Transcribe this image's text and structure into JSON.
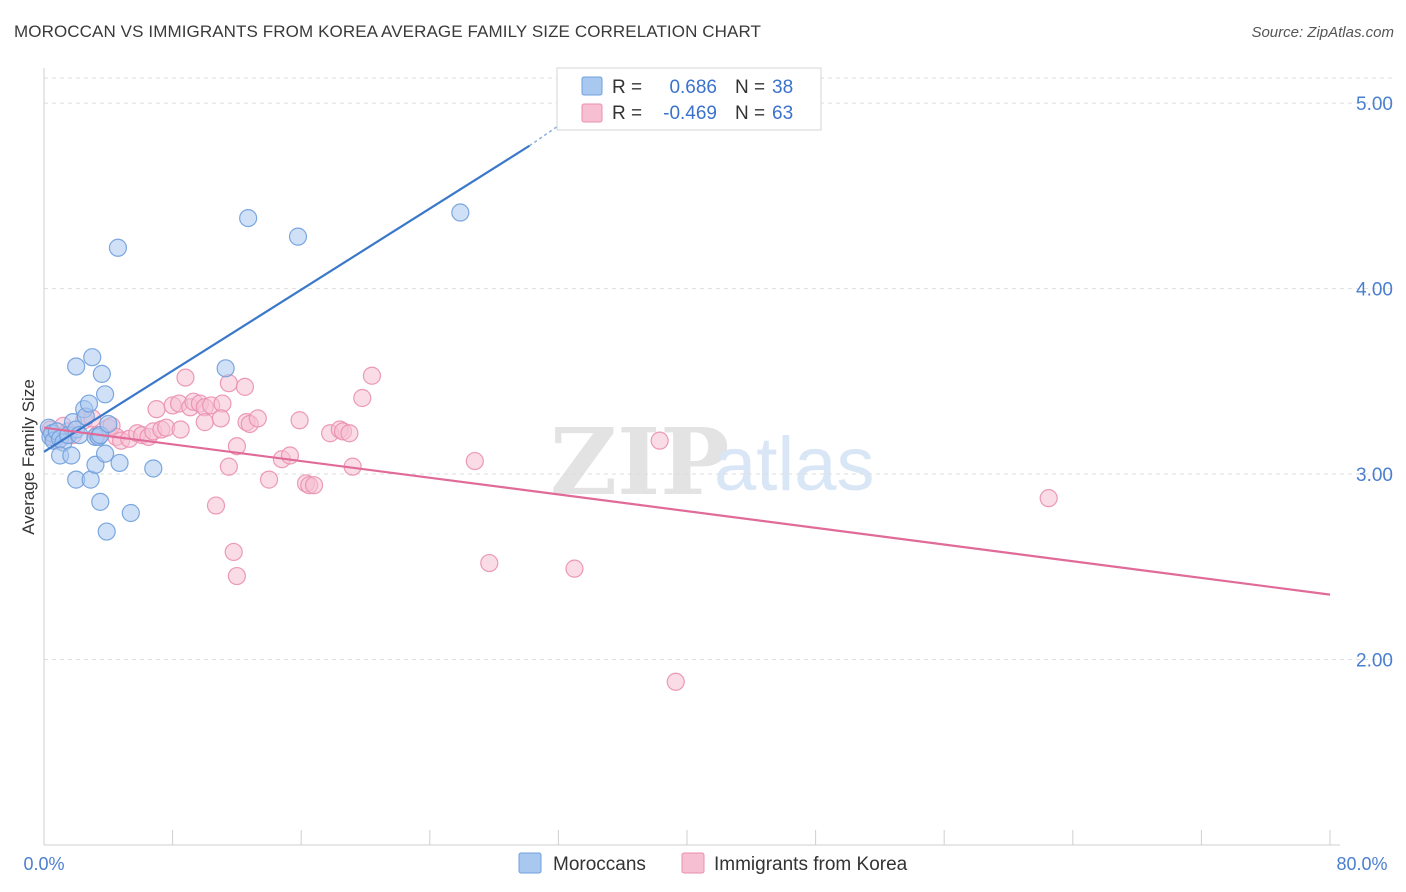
{
  "header": {
    "title": "MOROCCAN VS IMMIGRANTS FROM KOREA AVERAGE FAMILY SIZE CORRELATION CHART",
    "source": "Source: ZipAtlas.com"
  },
  "watermark": {
    "zip": "ZIP",
    "atlas": "atlas"
  },
  "legend": {
    "series": [
      {
        "r_label": "R =",
        "r_value": "0.686",
        "n_label": "N =",
        "n_value": "38"
      },
      {
        "r_label": "R =",
        "r_value": "-0.469",
        "n_label": "N =",
        "n_value": "63"
      }
    ]
  },
  "bottom_legend": {
    "items": [
      "Moroccans",
      "Immigrants from Korea"
    ]
  },
  "colors": {
    "blue_fill": "#a9c8f0",
    "blue_stroke": "#6f9fdc",
    "blue_line": "#3a78c9",
    "pink_fill": "#f6bfd2",
    "pink_stroke": "#ea8fb0",
    "pink_line": "#e06a98",
    "grid": "#dedede",
    "tick_text": "#4a7fd0"
  },
  "chart_data": {
    "type": "scatter",
    "title": "MOROCCAN VS IMMIGRANTS FROM KOREA AVERAGE FAMILY SIZE CORRELATION CHART",
    "xlabel": "",
    "ylabel": "Average Family Size",
    "xlim": [
      0,
      80
    ],
    "ylim": [
      1.0,
      5.2
    ],
    "x_tick_labels": [
      "0.0%",
      "80.0%"
    ],
    "y_ticks": [
      2.0,
      3.0,
      4.0,
      5.0
    ],
    "y_tick_labels": [
      "2.00",
      "3.00",
      "4.00",
      "5.00"
    ],
    "grid": true,
    "legend_position": "top-center",
    "series": [
      {
        "name": "Moroccans",
        "color": "#a9c8f0",
        "r": 0.686,
        "n": 38,
        "trend": {
          "x": [
            0,
            30.2
          ],
          "y": [
            3.12,
            4.77
          ],
          "dashed_to": [
            33.2,
            4.95
          ]
        },
        "points": [
          [
            0.3,
            3.25
          ],
          [
            0.4,
            3.2
          ],
          [
            0.5,
            3.22
          ],
          [
            0.6,
            3.18
          ],
          [
            0.8,
            3.23
          ],
          [
            1.0,
            3.19
          ],
          [
            1.2,
            3.17
          ],
          [
            1.5,
            3.21
          ],
          [
            1.8,
            3.28
          ],
          [
            2.0,
            3.24
          ],
          [
            2.2,
            3.21
          ],
          [
            2.5,
            3.35
          ],
          [
            2.6,
            3.31
          ],
          [
            2.8,
            3.38
          ],
          [
            3.0,
            3.63
          ],
          [
            3.2,
            3.2
          ],
          [
            3.4,
            3.2
          ],
          [
            3.5,
            3.21
          ],
          [
            3.6,
            3.54
          ],
          [
            3.8,
            3.43
          ],
          [
            1.0,
            3.1
          ],
          [
            1.7,
            3.1
          ],
          [
            2.0,
            3.58
          ],
          [
            2.0,
            2.97
          ],
          [
            2.9,
            2.97
          ],
          [
            3.5,
            2.85
          ],
          [
            3.2,
            3.05
          ],
          [
            3.8,
            3.11
          ],
          [
            4.0,
            3.27
          ],
          [
            3.9,
            2.69
          ],
          [
            4.7,
            3.06
          ],
          [
            5.4,
            2.79
          ],
          [
            6.8,
            3.03
          ],
          [
            4.6,
            4.22
          ],
          [
            11.3,
            3.57
          ],
          [
            12.7,
            4.38
          ],
          [
            15.8,
            4.28
          ],
          [
            25.9,
            4.41
          ]
        ]
      },
      {
        "name": "Immigrants from Korea",
        "color": "#f6bfd2",
        "r": -0.469,
        "n": 63,
        "trend": {
          "x": [
            0,
            80
          ],
          "y": [
            3.25,
            2.35
          ]
        },
        "points": [
          [
            0.4,
            3.24
          ],
          [
            0.6,
            3.2
          ],
          [
            0.9,
            3.18
          ],
          [
            1.2,
            3.26
          ],
          [
            1.5,
            3.23
          ],
          [
            1.8,
            3.21
          ],
          [
            2.5,
            3.29
          ],
          [
            3.0,
            3.3
          ],
          [
            3.3,
            3.21
          ],
          [
            4.0,
            3.25
          ],
          [
            4.2,
            3.26
          ],
          [
            4.5,
            3.2
          ],
          [
            4.8,
            3.18
          ],
          [
            5.3,
            3.19
          ],
          [
            5.8,
            3.22
          ],
          [
            6.1,
            3.21
          ],
          [
            6.5,
            3.2
          ],
          [
            6.8,
            3.23
          ],
          [
            7.0,
            3.35
          ],
          [
            7.3,
            3.24
          ],
          [
            7.6,
            3.25
          ],
          [
            8.0,
            3.37
          ],
          [
            8.4,
            3.38
          ],
          [
            8.8,
            3.52
          ],
          [
            9.1,
            3.36
          ],
          [
            9.3,
            3.39
          ],
          [
            9.7,
            3.38
          ],
          [
            10.0,
            3.36
          ],
          [
            10.4,
            3.37
          ],
          [
            11.1,
            3.38
          ],
          [
            11.5,
            3.49
          ],
          [
            12.0,
            3.15
          ],
          [
            12.5,
            3.47
          ],
          [
            12.6,
            3.28
          ],
          [
            12.8,
            3.27
          ],
          [
            13.3,
            3.3
          ],
          [
            14.0,
            2.97
          ],
          [
            14.8,
            3.08
          ],
          [
            15.3,
            3.1
          ],
          [
            15.9,
            3.29
          ],
          [
            16.3,
            2.95
          ],
          [
            16.5,
            2.94
          ],
          [
            16.8,
            2.94
          ],
          [
            17.8,
            3.22
          ],
          [
            18.4,
            3.24
          ],
          [
            18.6,
            3.23
          ],
          [
            19.0,
            3.22
          ],
          [
            19.2,
            3.04
          ],
          [
            19.8,
            3.41
          ],
          [
            20.4,
            3.53
          ],
          [
            8.5,
            3.24
          ],
          [
            10.0,
            3.28
          ],
          [
            11.0,
            3.3
          ],
          [
            11.5,
            3.04
          ],
          [
            10.7,
            2.83
          ],
          [
            11.8,
            2.58
          ],
          [
            12.0,
            2.45
          ],
          [
            26.8,
            3.07
          ],
          [
            27.7,
            2.52
          ],
          [
            33.0,
            2.49
          ],
          [
            38.3,
            3.18
          ],
          [
            39.3,
            1.88
          ],
          [
            62.5,
            2.87
          ]
        ]
      }
    ]
  }
}
